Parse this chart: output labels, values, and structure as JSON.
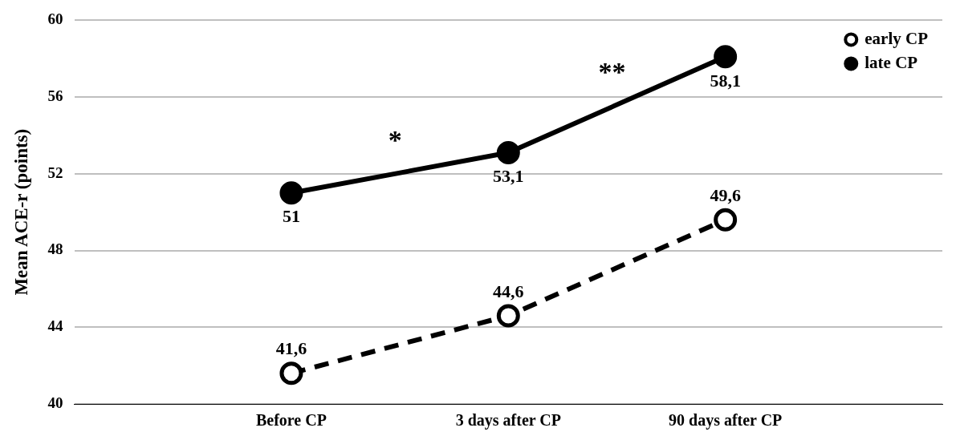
{
  "chart_data": {
    "type": "line",
    "ylabel": "Mean ACE-r (points)",
    "categories": [
      null,
      "Before CP",
      "3 days after CP",
      "90 days after CP",
      null
    ],
    "series": [
      {
        "name": "early CP",
        "color": "#000000",
        "line_style": "dashed",
        "values": [
          null,
          41.6,
          44.6,
          49.6,
          null
        ],
        "value_labels": [
          null,
          "41,6",
          "44,6",
          "49,6",
          null
        ]
      },
      {
        "name": "late CP",
        "color": "#000000",
        "line_style": "solid",
        "values": [
          null,
          51,
          53.1,
          58.1,
          null
        ],
        "value_labels": [
          null,
          "51",
          "53,1",
          "58,1",
          null
        ]
      }
    ],
    "ylim": [
      40,
      60
    ],
    "yticks": [
      40,
      44,
      48,
      52,
      56,
      60
    ],
    "grid": "y",
    "legend": "top right",
    "marker": "circle",
    "annotations": [
      "*",
      "**"
    ]
  }
}
